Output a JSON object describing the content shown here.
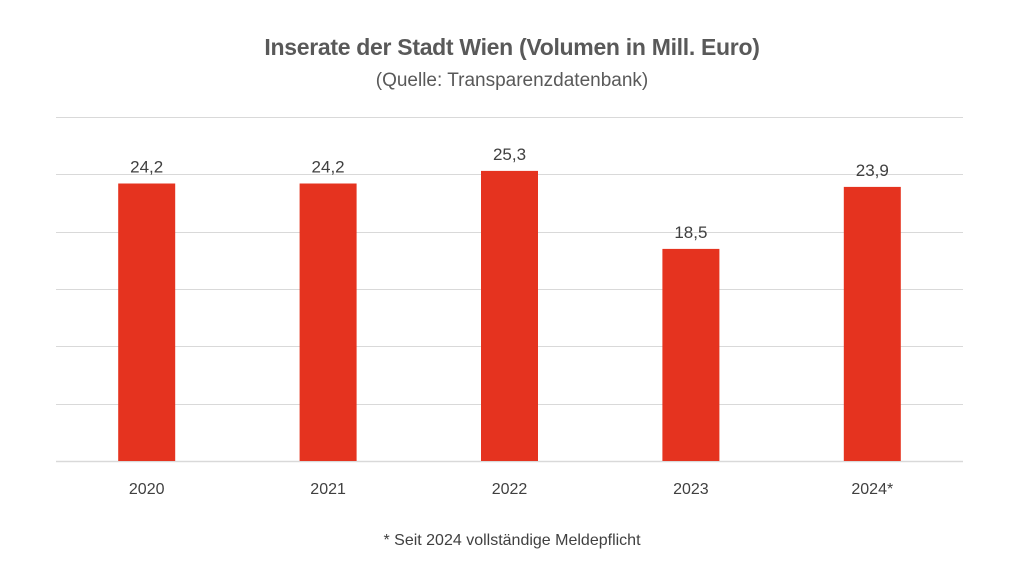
{
  "chart_data": {
    "type": "bar",
    "title": "Inserate der Stadt Wien (Volumen in Mill. Euro)",
    "subtitle": "(Quelle: Transparenzdatenbank)",
    "categories": [
      "2020",
      "2021",
      "2022",
      "2023",
      "2024*"
    ],
    "values": [
      24.2,
      24.2,
      25.3,
      18.5,
      23.9
    ],
    "data_labels": [
      "24,2",
      "24,2",
      "25,3",
      "18,5",
      "23,9"
    ],
    "xlabel": "",
    "ylabel": "",
    "ylim": [
      0,
      30
    ],
    "ytick_step": 5,
    "grid": true,
    "bar_color": "#E5331F",
    "grid_color": "#D9D9D9",
    "footnote": "* Seit 2024 vollständige Meldepflicht"
  }
}
